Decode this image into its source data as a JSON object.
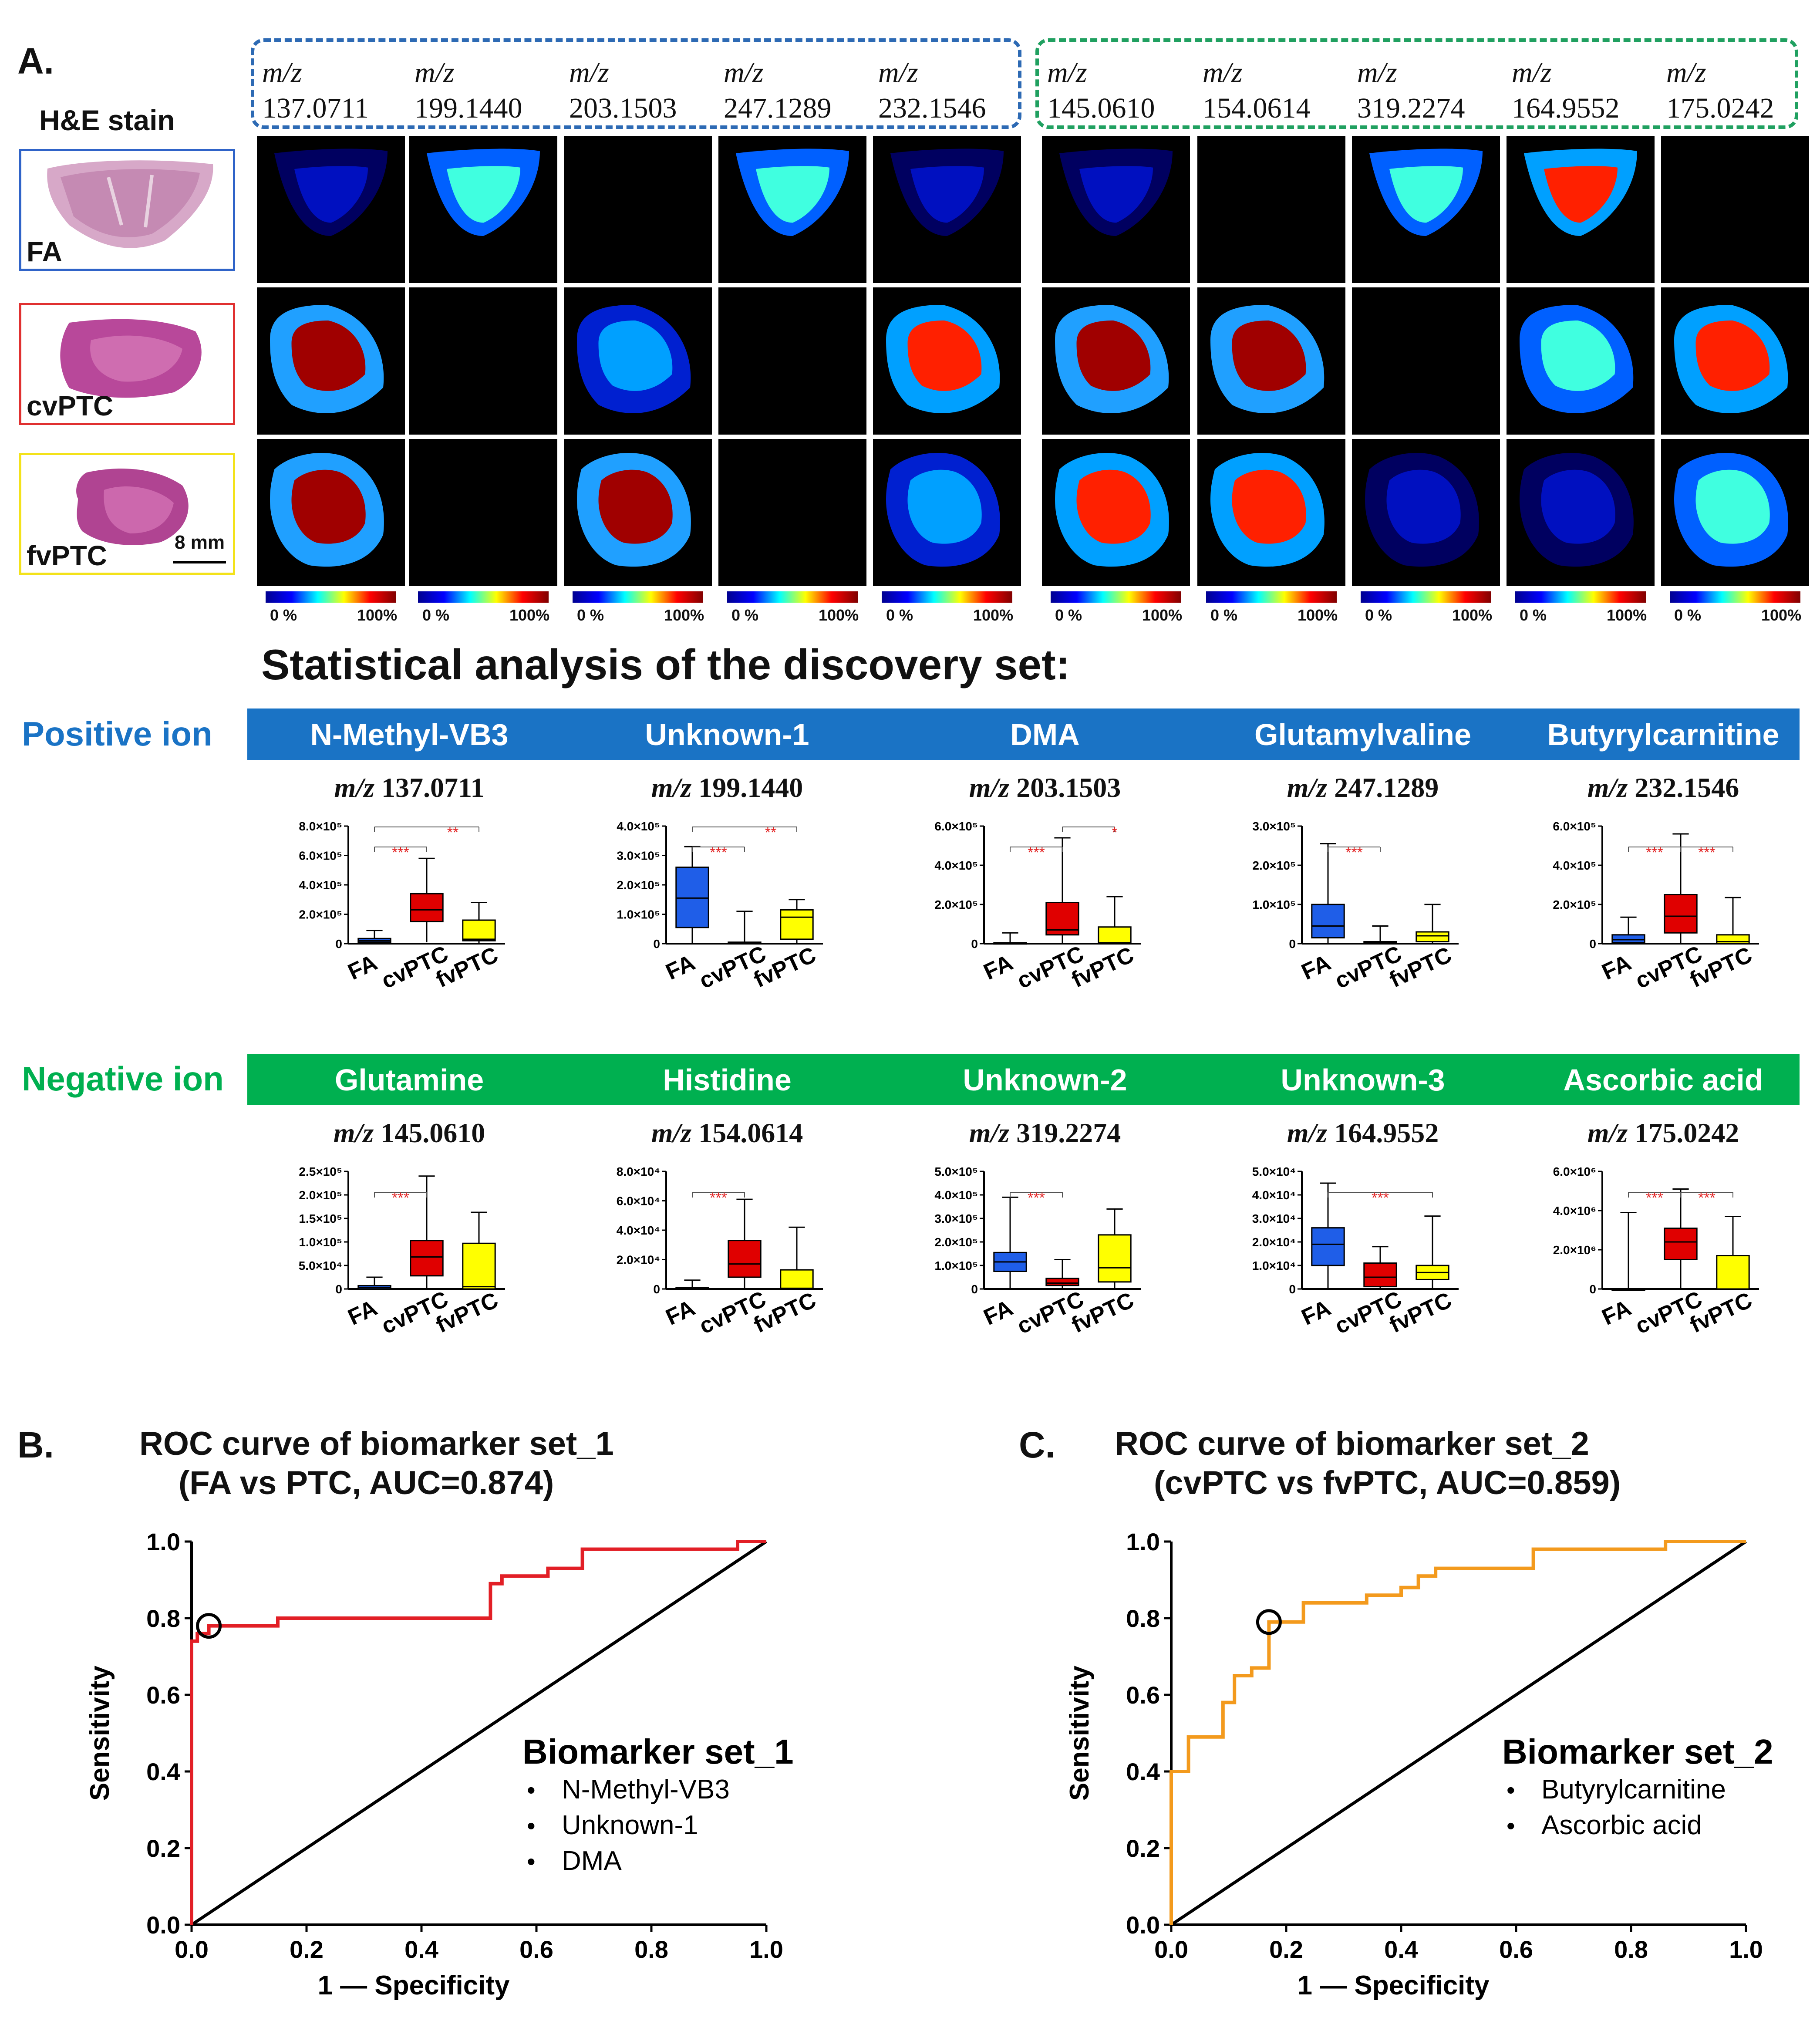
{
  "panel_a": {
    "letter": "A.",
    "he_title": "H&E stain",
    "he_labels": [
      "FA",
      "cvPTC",
      "fvPTC"
    ],
    "scale_bar": "8 mm",
    "mz_prefix": "m/z",
    "positive_mz": [
      "137.0711",
      "199.1440",
      "203.1503",
      "247.1289",
      "232.1546"
    ],
    "negative_mz": [
      "145.0610",
      "154.0614",
      "319.2274",
      "164.9552",
      "175.0242"
    ],
    "colorbar_min": "0 %",
    "colorbar_max": "100%",
    "stat_title": "Statistical analysis of the discovery set:",
    "positive_label": "Positive ion",
    "negative_label": "Negative ion",
    "colors": {
      "positive": "#1a73c5",
      "negative": "#00b050",
      "FA": "#1f5ee8",
      "cvPTC": "#e00000",
      "fvPTC": "#ffff00",
      "sig": "#e32626"
    },
    "group_labels": [
      "FA",
      "cvPTC",
      "fvPTC"
    ]
  },
  "chart_data": [
    {
      "type": "box",
      "title": "N-Methyl-VB3",
      "subtitle": "m/z 137.0711",
      "ticks": [
        "0",
        "2.0×10⁵",
        "4.0×10⁵",
        "6.0×10⁵",
        "8.0×10⁵"
      ],
      "ylim": [
        0,
        800000
      ],
      "boxes": [
        {
          "group": "FA",
          "min": 0,
          "q1": 10000,
          "median": 20000,
          "q3": 35000,
          "max": 90000
        },
        {
          "group": "cvPTC",
          "min": 10000,
          "q1": 150000,
          "median": 230000,
          "q3": 340000,
          "max": 580000
        },
        {
          "group": "fvPTC",
          "min": 0,
          "q1": 20000,
          "median": 30000,
          "q3": 160000,
          "max": 280000
        }
      ],
      "sig": [
        {
          "from": 0,
          "to": 1,
          "label": "***",
          "level": 0
        },
        {
          "from": 0,
          "to": 2,
          "label": "**",
          "level": 1
        }
      ]
    },
    {
      "type": "box",
      "title": "Unknown-1",
      "subtitle": "m/z 199.1440",
      "ticks": [
        "0",
        "1.0×10⁵",
        "2.0×10⁵",
        "3.0×10⁵",
        "4.0×10⁵"
      ],
      "ylim": [
        0,
        400000
      ],
      "boxes": [
        {
          "group": "FA",
          "min": 0,
          "q1": 55000,
          "median": 155000,
          "q3": 260000,
          "max": 330000
        },
        {
          "group": "cvPTC",
          "min": 0,
          "q1": 0,
          "median": 2000,
          "q3": 5000,
          "max": 110000
        },
        {
          "group": "fvPTC",
          "min": 0,
          "q1": 15000,
          "median": 90000,
          "q3": 115000,
          "max": 150000
        }
      ],
      "sig": [
        {
          "from": 0,
          "to": 1,
          "label": "***",
          "level": 0
        },
        {
          "from": 0,
          "to": 2,
          "label": "**",
          "level": 1
        }
      ]
    },
    {
      "type": "box",
      "title": "DMA",
      "subtitle": "m/z 203.1503",
      "ticks": [
        "0",
        "2.0×10⁵",
        "4.0×10⁵",
        "6.0×10⁵"
      ],
      "ylim": [
        0,
        600000
      ],
      "boxes": [
        {
          "group": "FA",
          "min": 0,
          "q1": 0,
          "median": 2000,
          "q3": 5000,
          "max": 55000
        },
        {
          "group": "cvPTC",
          "min": 0,
          "q1": 45000,
          "median": 70000,
          "q3": 210000,
          "max": 540000
        },
        {
          "group": "fvPTC",
          "min": 0,
          "q1": 0,
          "median": 5000,
          "q3": 85000,
          "max": 240000
        }
      ],
      "sig": [
        {
          "from": 0,
          "to": 1,
          "label": "***",
          "level": 0
        },
        {
          "from": 1,
          "to": 2,
          "label": "*",
          "level": 1
        }
      ]
    },
    {
      "type": "box",
      "title": "Glutamylvaline",
      "subtitle": "m/z 247.1289",
      "ticks": [
        "0",
        "1.0×10⁵",
        "2.0×10⁵",
        "3.0×10⁵"
      ],
      "ylim": [
        0,
        300000
      ],
      "boxes": [
        {
          "group": "FA",
          "min": 0,
          "q1": 15000,
          "median": 45000,
          "q3": 100000,
          "max": 255000
        },
        {
          "group": "cvPTC",
          "min": 0,
          "q1": 0,
          "median": 2000,
          "q3": 5000,
          "max": 45000
        },
        {
          "group": "fvPTC",
          "min": 0,
          "q1": 5000,
          "median": 20000,
          "q3": 30000,
          "max": 100000
        }
      ],
      "sig": [
        {
          "from": 0,
          "to": 1,
          "label": "***",
          "level": 0
        }
      ]
    },
    {
      "type": "box",
      "title": "Butyrylcarnitine",
      "subtitle": "m/z 232.1546",
      "ticks": [
        "0",
        "2.0×10⁵",
        "4.0×10⁵",
        "6.0×10⁵"
      ],
      "ylim": [
        0,
        600000
      ],
      "boxes": [
        {
          "group": "FA",
          "min": 0,
          "q1": 5000,
          "median": 20000,
          "q3": 45000,
          "max": 135000
        },
        {
          "group": "cvPTC",
          "min": 0,
          "q1": 55000,
          "median": 140000,
          "q3": 250000,
          "max": 560000
        },
        {
          "group": "fvPTC",
          "min": 0,
          "q1": 0,
          "median": 10000,
          "q3": 45000,
          "max": 235000
        }
      ],
      "sig": [
        {
          "from": 0,
          "to": 1,
          "label": "***",
          "level": 0
        },
        {
          "from": 1,
          "to": 2,
          "label": "***",
          "level": 0
        }
      ]
    },
    {
      "type": "box",
      "title": "Glutamine",
      "subtitle": "m/z 145.0610",
      "ticks": [
        "0",
        "5.0×10⁴",
        "1.0×10⁵",
        "1.5×10⁵",
        "2.0×10⁵",
        "2.5×10⁵"
      ],
      "ylim": [
        0,
        250000
      ],
      "boxes": [
        {
          "group": "FA",
          "min": 0,
          "q1": 0,
          "median": 3000,
          "q3": 7000,
          "max": 25000
        },
        {
          "group": "cvPTC",
          "min": 0,
          "q1": 28000,
          "median": 68000,
          "q3": 103000,
          "max": 240000
        },
        {
          "group": "fvPTC",
          "min": 0,
          "q1": 0,
          "median": 5000,
          "q3": 97000,
          "max": 163000
        }
      ],
      "sig": [
        {
          "from": 0,
          "to": 1,
          "label": "***",
          "level": 0
        }
      ]
    },
    {
      "type": "box",
      "title": "Histidine",
      "subtitle": "m/z 154.0614",
      "ticks": [
        "0",
        "2.0×10⁴",
        "4.0×10⁴",
        "6.0×10⁴",
        "8.0×10⁴"
      ],
      "ylim": [
        0,
        80000
      ],
      "boxes": [
        {
          "group": "FA",
          "min": 0,
          "q1": 0,
          "median": 500,
          "q3": 1000,
          "max": 6000
        },
        {
          "group": "cvPTC",
          "min": 0,
          "q1": 8000,
          "median": 17000,
          "q3": 33000,
          "max": 61000
        },
        {
          "group": "fvPTC",
          "min": 0,
          "q1": 0,
          "median": 500,
          "q3": 13000,
          "max": 42000
        }
      ],
      "sig": [
        {
          "from": 0,
          "to": 1,
          "label": "***",
          "level": 0
        }
      ]
    },
    {
      "type": "box",
      "title": "Unknown-2",
      "subtitle": "m/z 319.2274",
      "ticks": [
        "0",
        "1.0×10⁵",
        "2.0×10⁵",
        "3.0×10⁵",
        "4.0×10⁵",
        "5.0×10⁵"
      ],
      "ylim": [
        0,
        500000
      ],
      "boxes": [
        {
          "group": "FA",
          "min": 0,
          "q1": 75000,
          "median": 115000,
          "q3": 155000,
          "max": 390000
        },
        {
          "group": "cvPTC",
          "min": 0,
          "q1": 15000,
          "median": 25000,
          "q3": 45000,
          "max": 125000
        },
        {
          "group": "fvPTC",
          "min": 0,
          "q1": 30000,
          "median": 90000,
          "q3": 230000,
          "max": 340000
        }
      ],
      "sig": [
        {
          "from": 0,
          "to": 1,
          "label": "***",
          "level": 0
        }
      ]
    },
    {
      "type": "box",
      "title": "Unknown-3",
      "subtitle": "m/z 164.9552",
      "ticks": [
        "0",
        "1.0×10⁴",
        "2.0×10⁴",
        "3.0×10⁴",
        "4.0×10⁴",
        "5.0×10⁴"
      ],
      "ylim": [
        0,
        50000
      ],
      "boxes": [
        {
          "group": "FA",
          "min": 0,
          "q1": 10000,
          "median": 19000,
          "q3": 26000,
          "max": 45000
        },
        {
          "group": "cvPTC",
          "min": 0,
          "q1": 1000,
          "median": 5000,
          "q3": 11000,
          "max": 18000
        },
        {
          "group": "fvPTC",
          "min": 0,
          "q1": 4000,
          "median": 7000,
          "q3": 10000,
          "max": 31000
        }
      ],
      "sig": [
        {
          "from": 0,
          "to": 2,
          "label": "***",
          "level": 0
        }
      ]
    },
    {
      "type": "box",
      "title": "Ascorbic acid",
      "subtitle": "m/z 175.0242",
      "ticks": [
        "0",
        "2.0×10⁶",
        "4.0×10⁶",
        "6.0×10⁶"
      ],
      "ylim": [
        0,
        6000000
      ],
      "boxes": [
        {
          "group": "FA",
          "min": 0,
          "q1": 0,
          "median": 0,
          "q3": 0,
          "max": 3900000
        },
        {
          "group": "cvPTC",
          "min": 0,
          "q1": 1500000,
          "median": 2400000,
          "q3": 3100000,
          "max": 5100000
        },
        {
          "group": "fvPTC",
          "min": 0,
          "q1": 0,
          "median": 0,
          "q3": 1700000,
          "max": 3700000
        }
      ],
      "sig": [
        {
          "from": 0,
          "to": 1,
          "label": "***",
          "level": 0
        },
        {
          "from": 1,
          "to": 2,
          "label": "***",
          "level": 0
        }
      ]
    },
    {
      "type": "line",
      "letter": "B.",
      "title": "ROC curve of biomarker set_1",
      "subtitle": "(FA vs PTC, AUC=0.874)",
      "xlabel": "1 — Specificity",
      "ylabel": "Sensitivity",
      "xlim": [
        0,
        1
      ],
      "ylim": [
        0,
        1
      ],
      "ticks": [
        "0.0",
        "0.2",
        "0.4",
        "0.6",
        "0.8",
        "1.0"
      ],
      "color": "#e21f26",
      "cutoff": [
        0.03,
        0.78
      ],
      "x": [
        0,
        0,
        0.01,
        0.01,
        0.03,
        0.03,
        0.15,
        0.15,
        0.52,
        0.52,
        0.54,
        0.54,
        0.56,
        0.56,
        0.62,
        0.62,
        0.68,
        0.68,
        0.95,
        0.95,
        1.0
      ],
      "y": [
        0,
        0.74,
        0.74,
        0.76,
        0.76,
        0.78,
        0.78,
        0.8,
        0.8,
        0.89,
        0.89,
        0.91,
        0.91,
        0.91,
        0.91,
        0.93,
        0.93,
        0.98,
        0.98,
        1.0,
        1.0
      ],
      "legend_title": "Biomarker set_1",
      "legend_items": [
        "N-Methyl-VB3",
        "Unknown-1",
        "DMA"
      ]
    },
    {
      "type": "line",
      "letter": "C.",
      "title": "ROC curve of biomarker set_2",
      "subtitle": "(cvPTC vs fvPTC, AUC=0.859)",
      "xlabel": "1 — Specificity",
      "ylabel": "Sensitivity",
      "xlim": [
        0,
        1
      ],
      "ylim": [
        0,
        1
      ],
      "ticks": [
        "0.0",
        "0.2",
        "0.4",
        "0.6",
        "0.8",
        "1.0"
      ],
      "color": "#f39a1d",
      "cutoff": [
        0.17,
        0.79
      ],
      "x": [
        0,
        0,
        0.03,
        0.03,
        0.09,
        0.09,
        0.11,
        0.11,
        0.14,
        0.14,
        0.17,
        0.17,
        0.23,
        0.23,
        0.34,
        0.34,
        0.4,
        0.4,
        0.43,
        0.43,
        0.46,
        0.46,
        0.63,
        0.63,
        0.86,
        0.86,
        1.0
      ],
      "y": [
        0,
        0.4,
        0.4,
        0.49,
        0.49,
        0.58,
        0.58,
        0.65,
        0.65,
        0.67,
        0.67,
        0.79,
        0.79,
        0.84,
        0.84,
        0.86,
        0.86,
        0.88,
        0.88,
        0.91,
        0.91,
        0.93,
        0.93,
        0.98,
        0.98,
        1.0,
        1.0
      ],
      "legend_title": "Biomarker set_2",
      "legend_items": [
        "Butyrylcarnitine",
        "Ascorbic acid"
      ]
    }
  ]
}
